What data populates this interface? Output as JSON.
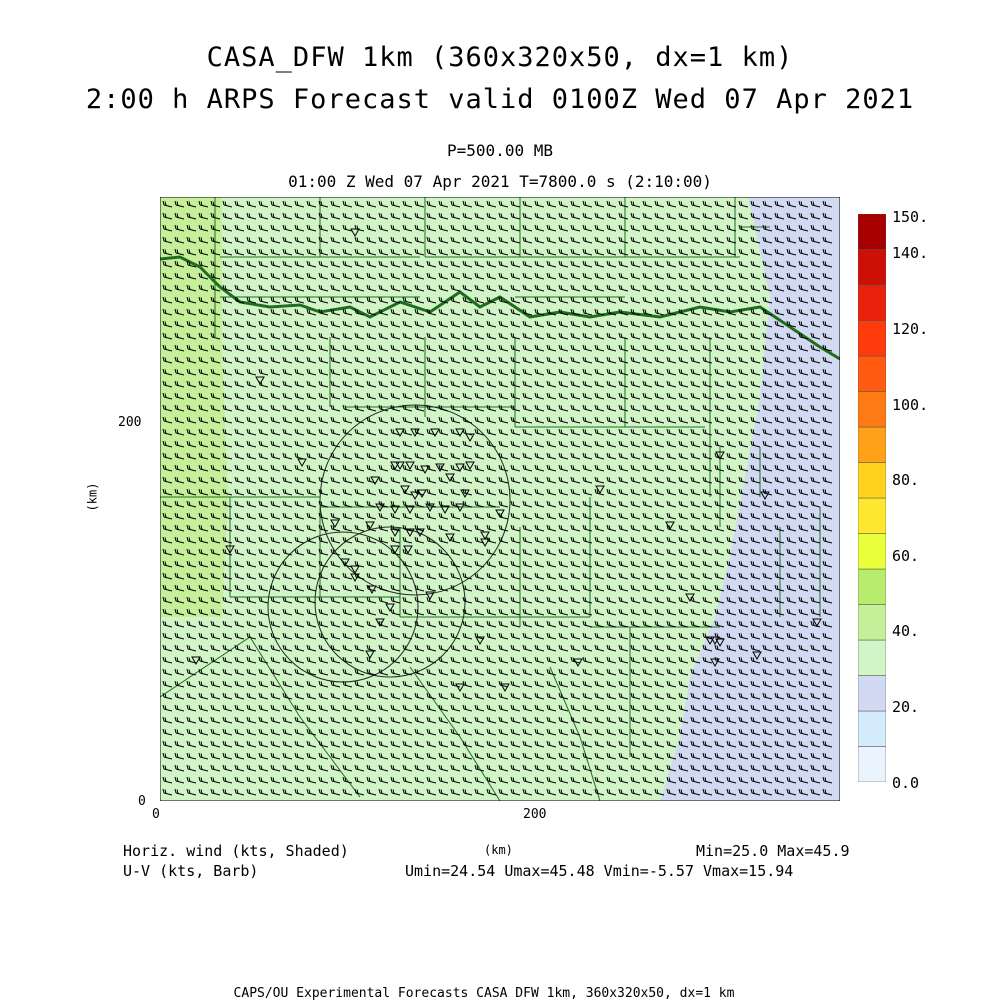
{
  "title": {
    "line1": "CASA_DFW 1km (360x320x50, dx=1 km)",
    "line2": "2:00 h ARPS Forecast valid 0100Z Wed 07 Apr 2021"
  },
  "subtitle": {
    "level": "P=500.00 MB",
    "time": "01:00 Z Wed 07 Apr 2021   T=7800.0 s (2:10:00)"
  },
  "axes": {
    "x_ticks": [
      "0",
      "200"
    ],
    "y_ticks": [
      "0",
      "200"
    ],
    "x_unit": "(km)",
    "y_unit": "(km)"
  },
  "legend": {
    "left1": "Horiz. wind (kts, Shaded)",
    "left2": "U-V (kts, Barb)",
    "minmax": "Min=25.0 Max=45.9",
    "uv_stats": "Umin=24.54 Umax=45.48 Vmin=-5.57 Vmax=15.94"
  },
  "colorbar": {
    "labels": [
      "0.0",
      "20.",
      "40.",
      "60.",
      "80.",
      "100.",
      "120.",
      "140.",
      "150."
    ],
    "colors": [
      "#eaf4ff",
      "#d4ecfc",
      "#d2d9f2",
      "#d2f5c8",
      "#c6ef9a",
      "#b8ec6c",
      "#e8ff3a",
      "#ffe830",
      "#ffd21e",
      "#ffa21a",
      "#ff7a12",
      "#ff5a10",
      "#ff3a0c",
      "#e8200c",
      "#cc1008",
      "#a80000"
    ]
  },
  "footer": "CAPS/OU Experimental Forecasts  CASA DFW 1km, 360x320x50, dx=1 km",
  "chart_data": {
    "type": "heatmap",
    "variable": "Horiz. wind (kts, Shaded)",
    "min": 25.0,
    "max": 45.9,
    "umin": 24.54,
    "umax": 45.48,
    "vmin": -5.57,
    "vmax": 15.94,
    "x_range_km": [
      0,
      360
    ],
    "y_range_km": [
      0,
      320
    ],
    "regions": [
      {
        "name": "west strip",
        "speed_band": "40-50"
      },
      {
        "name": "central",
        "speed_band": "30-40"
      },
      {
        "name": "east/southeast",
        "speed_band": "25-30"
      }
    ]
  }
}
